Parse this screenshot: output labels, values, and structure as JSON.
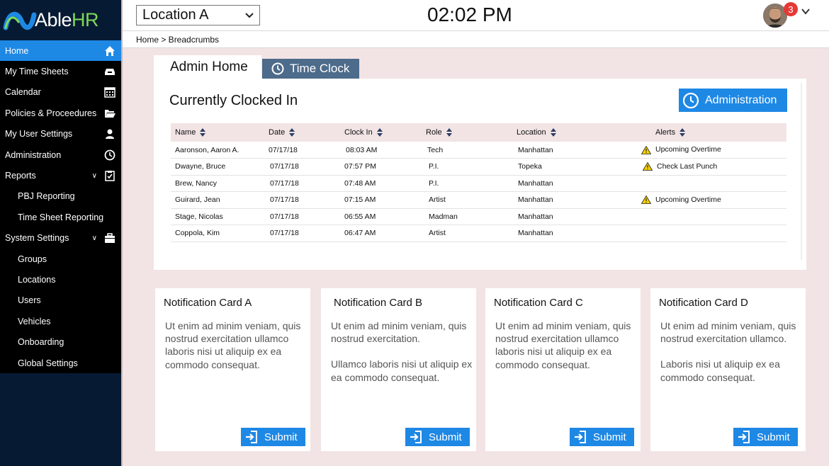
{
  "brand": {
    "name_part1": "Able",
    "name_part2": "HR"
  },
  "sidebar": {
    "items": [
      {
        "label": "Home",
        "icon": "home-icon"
      },
      {
        "label": "My Time Sheets",
        "icon": "inbox-tray-icon"
      },
      {
        "label": "Calendar",
        "icon": "calendar-icon"
      },
      {
        "label": "Policies & Proceedures",
        "icon": "folder-open-icon"
      },
      {
        "label": "My User Settings",
        "icon": "user-icon"
      },
      {
        "label": "Administration",
        "icon": "clock-icon"
      },
      {
        "label": "Reports",
        "icon": "clipboard-check-icon"
      },
      {
        "label": "PBJ Reporting"
      },
      {
        "label": "Time Sheet Reporting"
      },
      {
        "label": "System Settings",
        "icon": "briefcase-icon"
      },
      {
        "label": "Groups"
      },
      {
        "label": "Locations"
      },
      {
        "label": "Users"
      },
      {
        "label": "Vehicles"
      },
      {
        "label": "Onboarding"
      },
      {
        "label": "Global Settings"
      }
    ]
  },
  "header": {
    "location_value": "Location A",
    "time": "02:02 PM",
    "notification_count": "3"
  },
  "breadcrumb": "Home > Breadcrumbs",
  "tabs": {
    "admin_home": "Admin Home",
    "time_clock": "Time Clock"
  },
  "panel": {
    "title": "Currently Clocked In",
    "admin_button": "Administration",
    "columns": [
      "Name",
      "Date",
      "Clock In",
      "Role",
      "Location",
      "Alerts"
    ],
    "rows": [
      [
        "Aaronson, Aaron A.",
        "07/17/18",
        "08:03 AM",
        "Tech",
        "Manhattan",
        "Upcoming Overtime"
      ],
      [
        "Dwayne, Bruce",
        "07/17/18",
        "07:57 PM",
        "P.I.",
        "Topeka",
        "Check Last Punch"
      ],
      [
        "Brew, Nancy",
        "07/17/18",
        "07:48 AM",
        "P.I.",
        "Manhattan",
        ""
      ],
      [
        "Guirard, Jean",
        "07/17/18",
        "07:15 AM",
        "Artist",
        "Manhattan",
        "Upcoming Overtime"
      ],
      [
        "Stage, Nicolas",
        "07/17/18",
        "06:55 AM",
        "Madman",
        "Manhattan",
        ""
      ],
      [
        "Coppola, Kim",
        "07/17/18",
        "06:47 AM",
        "Artist",
        "Manhattan",
        ""
      ]
    ]
  },
  "cards": [
    {
      "title": "Notification Card A",
      "p1": "Ut enim ad minim veniam, quis nostrud exercitation ullamco laboris nisi ut aliquip ex ea commodo consequat.",
      "p2": "",
      "submit": "Submit"
    },
    {
      "title": "Notification Card B",
      "p1": "Ut enim ad minim veniam, quis nostrud exercitation.",
      "p2": "Ullamco laboris nisi ut aliquip ex ea commodo consequat.",
      "submit": "Submit"
    },
    {
      "title": "Notification Card C",
      "p1": "Ut enim ad minim veniam, quis nostrud exercitation ullamco laboris nisi ut aliquip ex ea commodo consequat.",
      "p2": "",
      "submit": "Submit"
    },
    {
      "title": "Notification Card D",
      "p1": "Ut enim ad minim veniam, quis nostrud exercitation ullamco.",
      "p2": "Laboris nisi ut aliquip ex ea commodo consequat.",
      "submit": "Submit"
    }
  ],
  "colors": {
    "accent": "#1e88e5",
    "sidebar": "#071a33",
    "tab_inactive": "#4d6b8a",
    "warning": "#f5d000"
  }
}
